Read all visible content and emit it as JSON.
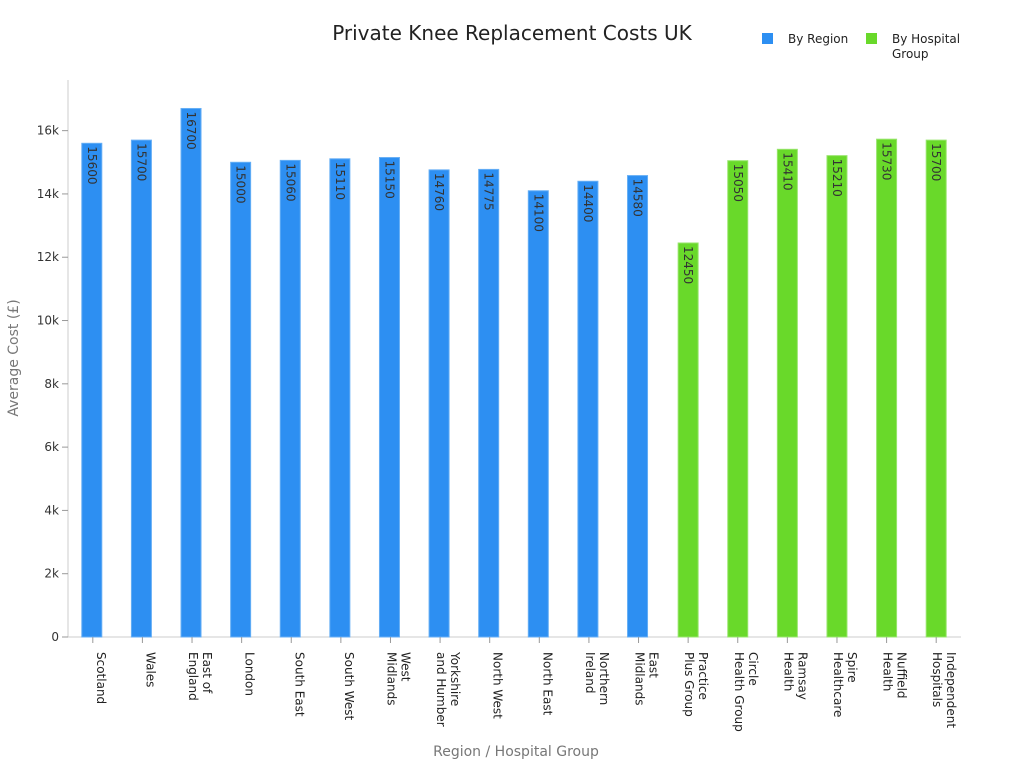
{
  "chart_data": {
    "type": "bar",
    "title": "Private Knee Replacement Costs UK",
    "xlabel": "Region / Hospital Group",
    "ylabel": "Average Cost (£)",
    "ylim": [
      0,
      17600
    ],
    "yticks": [
      {
        "value": 0,
        "label": "0"
      },
      {
        "value": 2000,
        "label": "2k"
      },
      {
        "value": 4000,
        "label": "4k"
      },
      {
        "value": 6000,
        "label": "6k"
      },
      {
        "value": 8000,
        "label": "8k"
      },
      {
        "value": 10000,
        "label": "10k"
      },
      {
        "value": 12000,
        "label": "12k"
      },
      {
        "value": 14000,
        "label": "14k"
      },
      {
        "value": 16000,
        "label": "16k"
      }
    ],
    "grid": false,
    "legend_position": "top-right",
    "categories": [
      [
        "Scotland"
      ],
      [
        "Wales"
      ],
      [
        "East of",
        "England"
      ],
      [
        "London"
      ],
      [
        "South East"
      ],
      [
        "South West"
      ],
      [
        "West",
        "Midlands"
      ],
      [
        "Yorkshire",
        "and Humber"
      ],
      [
        "North West"
      ],
      [
        "North East"
      ],
      [
        "Northern",
        "Ireland"
      ],
      [
        "East",
        "Midlands"
      ],
      [
        "Practice",
        "Plus Group"
      ],
      [
        "Circle",
        "Health Group"
      ],
      [
        "Ramsay",
        "Health"
      ],
      [
        "Spire",
        "Healthcare"
      ],
      [
        "Nuffield",
        "Health"
      ],
      [
        "Independent",
        "Hospitals"
      ]
    ],
    "series": [
      {
        "name": "By Region",
        "legend_lines": [
          "By Region"
        ],
        "color": "#2d8ff2",
        "stroke": "#65aef5",
        "offset": -1,
        "values": [
          15600,
          15700,
          16700,
          15000,
          15060,
          15110,
          15150,
          14760,
          14775,
          14100,
          14400,
          14580,
          null,
          null,
          null,
          null,
          null,
          null
        ]
      },
      {
        "name": "By Hospital Group",
        "legend_lines": [
          "By Hospital",
          "Group"
        ],
        "color": "#69d92a",
        "stroke": "#98e56c",
        "offset": 0,
        "values": [
          null,
          null,
          null,
          null,
          null,
          null,
          null,
          null,
          null,
          null,
          null,
          null,
          12450,
          15050,
          15410,
          15210,
          15730,
          15700
        ]
      }
    ]
  }
}
